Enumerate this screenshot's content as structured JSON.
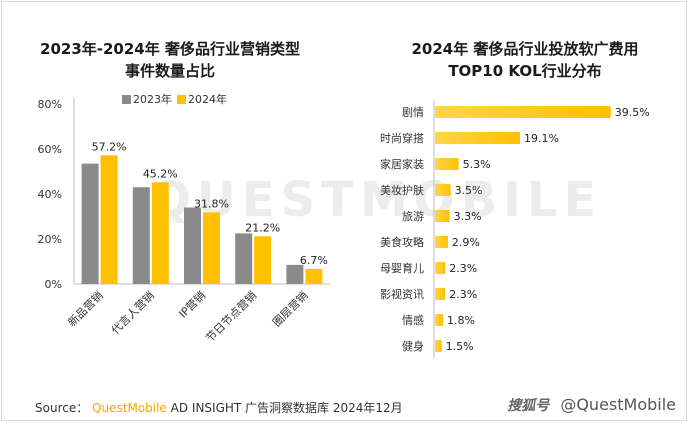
{
  "watermark": "QUESTMOBILE",
  "source": {
    "prefix": "Source：",
    "brand": "QuestMobile",
    "rest": "AD INSIGHT 广告洞察数据库 2024年12月"
  },
  "footer": {
    "badge": "搜狐号",
    "handle": "@QuestMobile"
  },
  "colors": {
    "series_2023": "#8a8a8a",
    "series_2024": "#ffc000",
    "bar_right": "#ffc000",
    "axis": "#bfbfbf"
  },
  "chart_data": [
    {
      "type": "bar",
      "title_lines": [
        "2023年-2024年 奢侈品行业营销类型",
        "事件数量占比"
      ],
      "categories": [
        "新品营销",
        "代言人营销",
        "IP营销",
        "节日节点营销",
        "圈层营销"
      ],
      "series": [
        {
          "name": "2023年",
          "values": [
            53.5,
            43.0,
            34.0,
            22.5,
            8.5
          ],
          "labels": [
            "",
            "",
            "",
            "",
            ""
          ]
        },
        {
          "name": "2024年",
          "values": [
            57.2,
            45.2,
            31.8,
            21.2,
            6.7
          ],
          "labels": [
            "57.2%",
            "45.2%",
            "31.8%",
            "21.2%",
            "6.7%"
          ]
        }
      ],
      "yticks": [
        "0%",
        "20%",
        "40%",
        "60%",
        "80%"
      ],
      "ylim": [
        0,
        80
      ],
      "legend": "top"
    },
    {
      "type": "bar",
      "orientation": "horizontal",
      "title_lines": [
        "2024年 奢侈品行业投放软广费用",
        "TOP10 KOL行业分布"
      ],
      "categories": [
        "剧情",
        "时尚穿搭",
        "家居家装",
        "美妆护肤",
        "旅游",
        "美食攻略",
        "母婴育儿",
        "影视资讯",
        "情感",
        "健身"
      ],
      "values": [
        39.5,
        19.1,
        5.3,
        3.5,
        3.3,
        2.9,
        2.3,
        2.3,
        1.8,
        1.5
      ],
      "labels": [
        "39.5%",
        "19.1%",
        "5.3%",
        "3.5%",
        "3.3%",
        "2.9%",
        "2.3%",
        "2.3%",
        "1.8%",
        "1.5%"
      ],
      "xlim": [
        0,
        40
      ]
    }
  ]
}
